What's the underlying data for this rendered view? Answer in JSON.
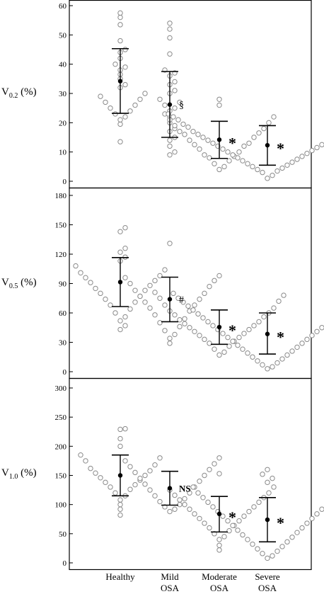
{
  "chart_data": [
    {
      "type": "scatter",
      "y_label_main": "V",
      "y_label_sub": "0.2",
      "y_label_unit": " (%)",
      "ylim": [
        0,
        60
      ],
      "yticks": [
        0,
        10,
        20,
        30,
        40,
        50,
        60
      ],
      "categories": [
        "Healthy",
        "Mild OSA",
        "Moderate OSA",
        "Severe OSA"
      ],
      "stats": [
        {
          "mean": 34.2,
          "upper": 45.3,
          "lower": 23.2
        },
        {
          "mean": 26.2,
          "upper": 37.5,
          "lower": 15.0
        },
        {
          "mean": 14.2,
          "upper": 20.5,
          "lower": 7.8
        },
        {
          "mean": 12.3,
          "upper": 19.0,
          "lower": 5.5
        }
      ],
      "annotations": [
        "",
        "§",
        "*",
        "*"
      ],
      "points": [
        [
          57.5,
          56,
          53.5,
          48,
          45,
          44,
          42,
          40,
          39,
          38,
          36.5,
          35,
          33,
          32,
          30,
          29,
          28,
          27,
          26,
          25,
          24,
          23,
          22,
          21,
          19.5,
          13.5
        ],
        [
          54,
          52,
          49,
          43.5,
          38,
          37,
          36,
          34,
          33,
          31,
          30,
          28,
          27,
          26,
          25,
          24,
          22,
          20,
          18,
          17,
          15,
          14,
          12,
          10,
          9
        ],
        [
          28,
          26,
          23,
          22,
          21,
          20,
          19,
          18,
          17,
          16.5,
          16,
          15,
          14,
          13,
          12.5,
          12,
          11,
          10,
          9,
          8.5,
          8,
          7,
          6,
          5,
          4
        ],
        [
          23,
          22.5,
          22,
          21.5,
          21,
          20,
          19.5,
          19,
          18.5,
          18,
          17,
          16.5,
          16,
          15.5,
          15,
          14.5,
          14,
          13.5,
          13,
          12.5,
          12,
          11.5,
          11,
          10.5,
          10,
          9.5,
          9,
          8.5,
          8,
          7.5,
          7,
          6.5,
          6,
          5.5,
          5,
          4.5,
          4,
          3.5,
          3,
          2,
          1
        ]
      ]
    },
    {
      "type": "scatter",
      "y_label_main": "V",
      "y_label_sub": "0.5",
      "y_label_unit": " (%)",
      "ylim": [
        0,
        180
      ],
      "yticks": [
        0,
        30,
        60,
        90,
        120,
        150,
        180
      ],
      "categories": [
        "Healthy",
        "Mild OSA",
        "Moderate OSA",
        "Severe OSA"
      ],
      "stats": [
        {
          "mean": 91.5,
          "upper": 116.5,
          "lower": 66.5
        },
        {
          "mean": 74.0,
          "upper": 96.5,
          "lower": 51.0
        },
        {
          "mean": 45.5,
          "upper": 63.0,
          "lower": 28.0
        },
        {
          "mean": 38.5,
          "upper": 60.0,
          "lower": 18.0
        }
      ],
      "annotations": [
        "",
        "#",
        "*",
        "*"
      ],
      "points": [
        [
          147,
          143,
          126,
          122,
          117,
          113,
          108,
          104,
          101,
          98,
          96,
          93,
          91,
          88,
          85,
          83,
          80,
          77,
          74,
          71,
          68,
          64,
          60,
          56,
          52,
          47,
          43
        ],
        [
          131,
          98,
          96,
          93,
          90,
          87,
          83,
          80,
          77,
          74,
          71,
          68,
          65,
          62,
          58,
          54,
          50,
          46,
          42,
          38,
          34,
          29
        ],
        [
          81,
          78,
          75,
          72,
          68,
          65,
          62,
          60,
          58,
          56,
          53,
          51,
          49,
          47,
          45,
          43,
          41,
          39,
          37,
          35,
          33,
          31,
          29,
          26,
          23,
          20,
          17
        ],
        [
          80,
          78,
          75,
          73,
          71,
          69,
          67,
          65,
          63,
          61,
          59,
          57,
          55,
          53,
          51,
          49,
          47,
          45,
          43,
          41,
          39,
          37,
          35,
          33,
          31,
          29,
          27,
          25,
          23,
          21,
          19,
          17,
          15,
          13,
          11,
          9,
          7,
          5,
          3
        ]
      ]
    },
    {
      "type": "scatter",
      "y_label_main": "V",
      "y_label_sub": "1.0",
      "y_label_unit": " (%)",
      "ylim": [
        0,
        300
      ],
      "yticks": [
        0,
        50,
        100,
        150,
        200,
        250,
        300
      ],
      "categories": [
        "Healthy",
        "Mild OSA",
        "Moderate OSA",
        "Severe OSA"
      ],
      "stats": [
        {
          "mean": 150,
          "upper": 185,
          "lower": 115
        },
        {
          "mean": 128,
          "upper": 157,
          "lower": 99
        },
        {
          "mean": 84,
          "upper": 114,
          "lower": 53
        },
        {
          "mean": 74,
          "upper": 112,
          "lower": 36
        }
      ],
      "annotations": [
        "",
        "NS",
        "*",
        "*"
      ],
      "points": [
        [
          230,
          229,
          213,
          200,
          185,
          180,
          175,
          168,
          162,
          158,
          154,
          150,
          146,
          142,
          138,
          134,
          130,
          126,
          120,
          115,
          108,
          100,
          92,
          82
        ],
        [
          180,
          175,
          170,
          165,
          160,
          155,
          150,
          145,
          140,
          135,
          130,
          125,
          120,
          115,
          110,
          105,
          100,
          96,
          92,
          88
        ],
        [
          153,
          130,
          125,
          120,
          116,
          112,
          108,
          104,
          100,
          96,
          92,
          88,
          84,
          80,
          76,
          72,
          68,
          64,
          60,
          55,
          50,
          45,
          40,
          30,
          22
        ],
        [
          160,
          152,
          145,
          138,
          130,
          125,
          120,
          116,
          112,
          108,
          104,
          100,
          96,
          92,
          88,
          84,
          80,
          76,
          72,
          68,
          64,
          60,
          56,
          52,
          48,
          44,
          40,
          36,
          32,
          28,
          24,
          20,
          16,
          12,
          8
        ]
      ]
    }
  ],
  "x_labels": [
    {
      "line1": "Healthy",
      "line2": ""
    },
    {
      "line1": "Mild",
      "line2": "OSA"
    },
    {
      "line1": "Moderate",
      "line2": "OSA"
    },
    {
      "line1": "Severe",
      "line2": "OSA"
    }
  ],
  "colors": {
    "marker_stroke": "#8a8a8a",
    "mean_fill": "#000000",
    "axis": "#000000"
  }
}
